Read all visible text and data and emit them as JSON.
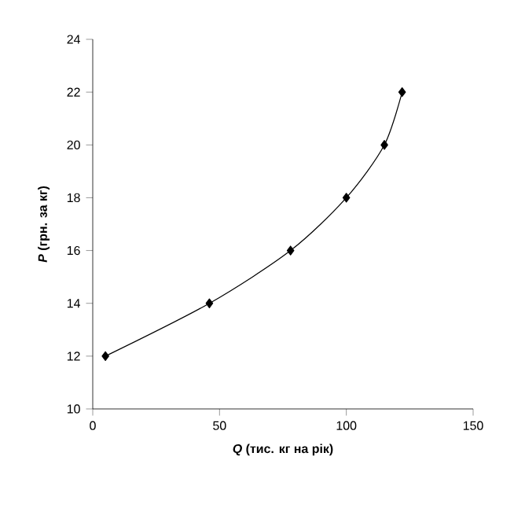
{
  "chart_data": {
    "type": "line",
    "xlabel": "*Q* (тис. кг на рік)",
    "ylabel": "*P* (грн. за кг)",
    "x": [
      5,
      46,
      78,
      100,
      115,
      122
    ],
    "series": [
      {
        "color": "#000000",
        "values": [
          12,
          14,
          16,
          18,
          20,
          22
        ]
      }
    ],
    "xlim": [
      0,
      150
    ],
    "ylim": [
      10,
      24
    ],
    "xticks": [
      0,
      50,
      100,
      150
    ],
    "yticks": [
      10,
      12,
      14,
      16,
      18,
      20,
      22,
      24
    ],
    "marker": "diamond",
    "line_style": "solid"
  }
}
